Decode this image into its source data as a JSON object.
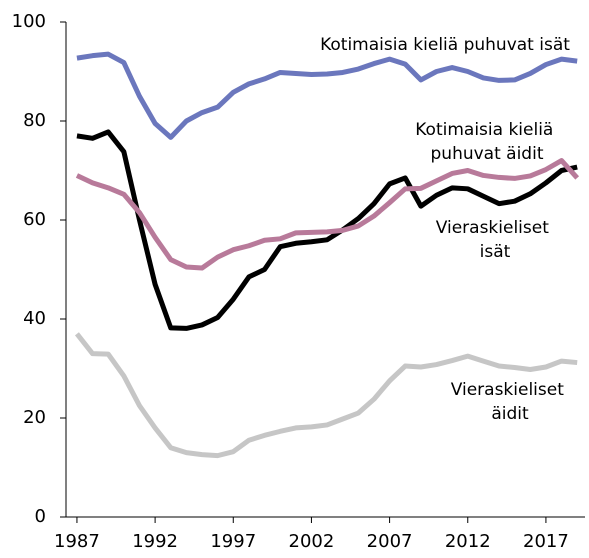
{
  "chart_data": {
    "type": "line",
    "x": [
      1987,
      1988,
      1989,
      1990,
      1991,
      1992,
      1993,
      1994,
      1995,
      1996,
      1997,
      1998,
      1999,
      2000,
      2001,
      2002,
      2003,
      2004,
      2005,
      2006,
      2007,
      2008,
      2009,
      2010,
      2011,
      2012,
      2013,
      2014,
      2015,
      2016,
      2017,
      2018,
      2019
    ],
    "series": [
      {
        "name": "Kotimaisia kieliä puhuvat isät",
        "color": "#6b77bd",
        "values": [
          92.7,
          93.2,
          93.5,
          91.8,
          85,
          79.5,
          76.7,
          80,
          81.7,
          82.8,
          85.8,
          87.5,
          88.5,
          89.8,
          89.6,
          89.4,
          89.5,
          89.8,
          90.5,
          91.6,
          92.5,
          91.5,
          88.3,
          90,
          90.8,
          90,
          88.7,
          88.2,
          88.3,
          89.6,
          91.4,
          92.5,
          92.1
        ]
      },
      {
        "name": "Vieraskieliset isät",
        "color": "#000000",
        "values": [
          77,
          76.5,
          77.8,
          73.8,
          60,
          47,
          38.2,
          38.1,
          38.8,
          40.3,
          44,
          48.5,
          50,
          54.6,
          55.3,
          55.6,
          56,
          58,
          60.3,
          63.3,
          67.3,
          68.5,
          62.8,
          65,
          66.5,
          66.3,
          64.8,
          63.3,
          63.8,
          65.3,
          67.5,
          70,
          70.7
        ]
      },
      {
        "name": "Kotimaisia kieliä puhuvat äidit",
        "color": "#b87a9a",
        "values": [
          69,
          67.5,
          66.5,
          65.2,
          61.5,
          56.5,
          52,
          50.5,
          50.3,
          52.5,
          54,
          54.8,
          55.9,
          56.2,
          57.4,
          57.5,
          57.6,
          57.9,
          58.8,
          60.8,
          63.5,
          66.3,
          66.4,
          67.9,
          69.4,
          70,
          69,
          68.6,
          68.4,
          68.9,
          70.2,
          72,
          68.5
        ]
      },
      {
        "name": "Vieraskieliset äidit",
        "color": "#c6c6c6",
        "values": [
          37,
          33,
          32.9,
          28.5,
          22.5,
          18,
          14,
          13,
          12.6,
          12.4,
          13.2,
          15.5,
          16.5,
          17.3,
          18,
          18.2,
          18.6,
          19.8,
          21,
          23.8,
          27.5,
          30.5,
          30.3,
          30.8,
          31.6,
          32.5,
          31.5,
          30.5,
          30.2,
          29.8,
          30.3,
          31.5,
          31.2
        ]
      }
    ],
    "xlim": [
      1986.3,
      2019.5
    ],
    "xticks": [
      1987,
      1992,
      1997,
      2002,
      2007,
      2012,
      2017
    ],
    "ylim": [
      0,
      100
    ],
    "yticks": [
      0,
      20,
      40,
      60,
      80,
      100
    ],
    "grid": false
  }
}
